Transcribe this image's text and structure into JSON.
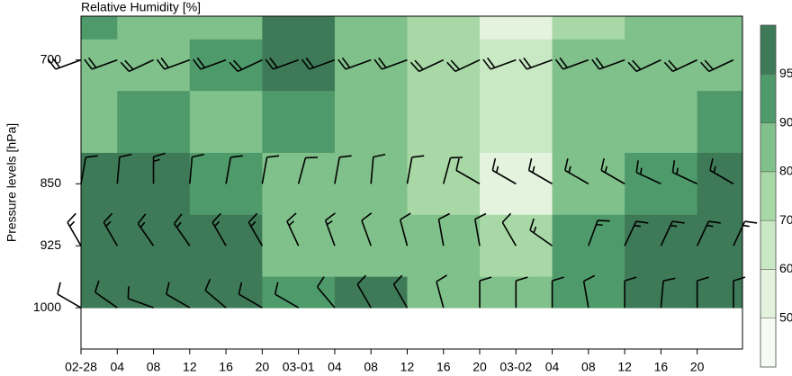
{
  "chart_data": {
    "type": "heatmap",
    "title": "Relative Humidity [%]",
    "ylabel": "Pressure levels [hPa]",
    "xlim": [
      0,
      73
    ],
    "xticks": [
      {
        "value": 0,
        "label": "02-28"
      },
      {
        "value": 4,
        "label": "04"
      },
      {
        "value": 8,
        "label": "08"
      },
      {
        "value": 12,
        "label": "12"
      },
      {
        "value": 16,
        "label": "16"
      },
      {
        "value": 20,
        "label": "20"
      },
      {
        "value": 24,
        "label": "03-01"
      },
      {
        "value": 28,
        "label": "04"
      },
      {
        "value": 32,
        "label": "08"
      },
      {
        "value": 36,
        "label": "12"
      },
      {
        "value": 40,
        "label": "16"
      },
      {
        "value": 44,
        "label": "20"
      },
      {
        "value": 48,
        "label": "03-02"
      },
      {
        "value": 52,
        "label": "04"
      },
      {
        "value": 56,
        "label": "08"
      },
      {
        "value": 60,
        "label": "12"
      },
      {
        "value": 64,
        "label": "16"
      },
      {
        "value": 68,
        "label": "20"
      }
    ],
    "ylim": [
      1050,
      647
    ],
    "yticks": [
      700,
      850,
      925,
      1000
    ],
    "grid_times": [
      0,
      8,
      16,
      24,
      32,
      40,
      48,
      56,
      64,
      72
    ],
    "grid_levels": [
      650,
      700,
      775,
      850,
      925,
      1000
    ],
    "values": [
      [
        93,
        85,
        80,
        96,
        80,
        70,
        55,
        75,
        80,
        85
      ],
      [
        80,
        80,
        92,
        97,
        85,
        70,
        60,
        80,
        82,
        85
      ],
      [
        88,
        92,
        85,
        92,
        80,
        72,
        65,
        80,
        88,
        92
      ],
      [
        96,
        96,
        92,
        88,
        80,
        70,
        55,
        88,
        94,
        96
      ],
      [
        97,
        97,
        96,
        88,
        85,
        80,
        75,
        92,
        96,
        97
      ],
      [
        97,
        97,
        95,
        90,
        96,
        85,
        88,
        92,
        96,
        97
      ]
    ],
    "colorbar": {
      "levels": [
        50,
        60,
        70,
        80,
        90,
        95
      ],
      "colors": [
        "#f6fbf4",
        "#e3f3de",
        "#c9e8c4",
        "#a8d8a6",
        "#80c08a",
        "#4f9a6a",
        "#3e7a57"
      ]
    },
    "wind": {
      "times": [
        0,
        4,
        8,
        12,
        16,
        20,
        24,
        28,
        32,
        36,
        40,
        44,
        48,
        52,
        56,
        60,
        64,
        68,
        72
      ],
      "levels": [
        700,
        850,
        925,
        1000
      ],
      "direction": [
        [
          250,
          250,
          245,
          250,
          250,
          245,
          250,
          250,
          250,
          250,
          245,
          245,
          250,
          250,
          250,
          250,
          245,
          245,
          245
        ],
        [
          10,
          5,
          0,
          5,
          10,
          10,
          15,
          10,
          5,
          10,
          15,
          300,
          300,
          300,
          300,
          300,
          295,
          295,
          300
        ],
        [
          330,
          330,
          325,
          325,
          330,
          330,
          335,
          340,
          340,
          345,
          350,
          350,
          330,
          305,
          20,
          25,
          25,
          25,
          25
        ],
        [
          300,
          305,
          290,
          300,
          310,
          300,
          300,
          320,
          330,
          330,
          345,
          0,
          0,
          0,
          350,
          0,
          5,
          0,
          0
        ]
      ],
      "speed": [
        [
          20,
          20,
          20,
          20,
          20,
          20,
          20,
          20,
          20,
          20,
          20,
          20,
          20,
          20,
          20,
          20,
          20,
          20,
          20
        ],
        [
          10,
          10,
          15,
          10,
          10,
          10,
          10,
          10,
          10,
          10,
          10,
          10,
          15,
          15,
          15,
          15,
          15,
          15,
          15
        ],
        [
          15,
          15,
          15,
          15,
          15,
          15,
          15,
          15,
          10,
          10,
          10,
          10,
          10,
          15,
          15,
          15,
          15,
          15,
          15
        ],
        [
          10,
          10,
          10,
          10,
          10,
          10,
          10,
          10,
          10,
          10,
          10,
          10,
          10,
          10,
          10,
          10,
          10,
          10,
          10
        ]
      ]
    }
  }
}
